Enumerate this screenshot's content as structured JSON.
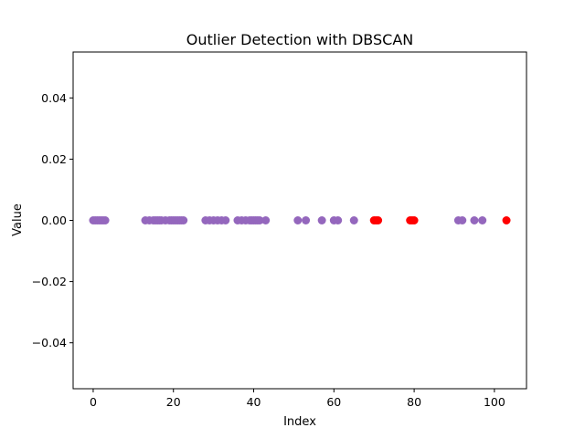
{
  "chart_data": {
    "type": "scatter",
    "title": "Outlier Detection with DBSCAN",
    "xlabel": "Index",
    "ylabel": "Value",
    "xlim": [
      -5,
      108
    ],
    "ylim": [
      -0.055,
      0.055
    ],
    "grid": false,
    "x_ticks": [
      0,
      20,
      40,
      60,
      80,
      100
    ],
    "x_tick_labels": [
      "0",
      "20",
      "40",
      "60",
      "80",
      "100"
    ],
    "y_ticks": [
      0.04,
      0.02,
      0.0,
      -0.02,
      -0.04
    ],
    "y_tick_labels": [
      "0.04",
      "0.02",
      "0.00",
      "−0.02",
      "−0.04"
    ],
    "series": [
      {
        "color": "#9467bd",
        "x": [
          0,
          0.5,
          1,
          1.5,
          2,
          2.5,
          3,
          13,
          14,
          15,
          15.5,
          16,
          16.5,
          17,
          18,
          19,
          19.5,
          20,
          20.5,
          21,
          21.5,
          22,
          22.5,
          28,
          29,
          30,
          31,
          32,
          33,
          36,
          37,
          38,
          39,
          39.5,
          40,
          40.5,
          41,
          41.5,
          43,
          51,
          53,
          57,
          60,
          61,
          65,
          91,
          92,
          95,
          97
        ],
        "y": [
          0,
          0,
          0,
          0,
          0,
          0,
          0,
          0,
          0,
          0,
          0,
          0,
          0,
          0,
          0,
          0,
          0,
          0,
          0,
          0,
          0,
          0,
          0,
          0,
          0,
          0,
          0,
          0,
          0,
          0,
          0,
          0,
          0,
          0,
          0,
          0,
          0,
          0,
          0,
          0,
          0,
          0,
          0,
          0,
          0,
          0,
          0,
          0,
          0
        ]
      },
      {
        "color": "#ff0000",
        "x": [
          70,
          70.5,
          71,
          79,
          79.5,
          80,
          103
        ],
        "y": [
          0,
          0,
          0,
          0,
          0,
          0,
          0
        ]
      }
    ]
  }
}
